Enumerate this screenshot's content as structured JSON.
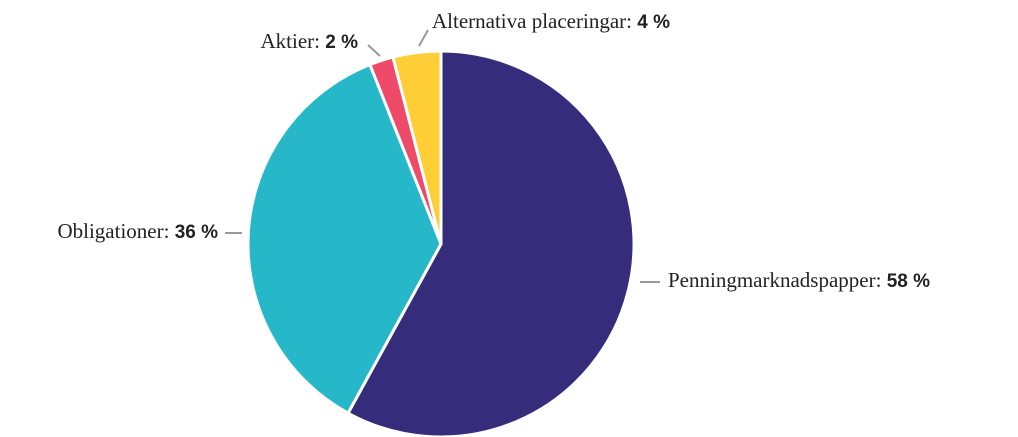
{
  "chart_data": {
    "type": "pie",
    "categories": [
      "Penningmarknadspapper:",
      "Obligationer:",
      "Aktier:",
      "Alternativa placeringar:"
    ],
    "values": [
      58,
      36,
      2,
      4
    ],
    "value_labels": [
      "58 %",
      "36 %",
      "2 %",
      "4 %"
    ],
    "colors": [
      "#352d7c",
      "#26b8c9",
      "#ef4a6a",
      "#ffcd35"
    ]
  }
}
